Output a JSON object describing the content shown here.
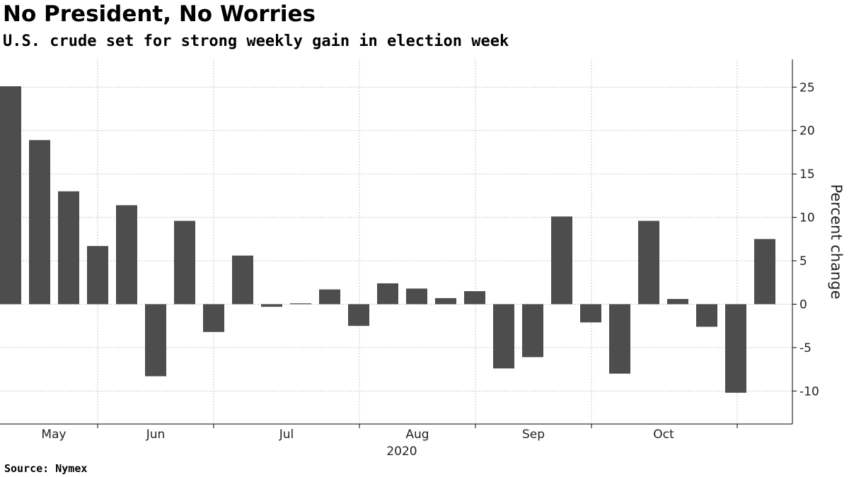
{
  "header": {
    "title": "No President, No Worries",
    "subtitle": "U.S. crude set for strong weekly gain in election week"
  },
  "footer": {
    "source": "Source: Nymex"
  },
  "colors": {
    "bar": "#4d4d4d",
    "grid": "#c8c8c8",
    "axis": "#000000"
  },
  "chart_data": {
    "type": "bar",
    "ylabel": "Percent change",
    "ylim": [
      -13.8,
      28.2
    ],
    "yticks": [
      -10,
      -5,
      0,
      5,
      10,
      15,
      20,
      25
    ],
    "xlabel": "2020",
    "x_month_labels": [
      "May",
      "Jun",
      "Jul",
      "Aug",
      "Sep",
      "Oct"
    ],
    "grid": true,
    "values": [
      25.1,
      18.9,
      13.0,
      6.7,
      11.4,
      -8.3,
      9.6,
      -3.2,
      5.6,
      -0.3,
      0.1,
      1.7,
      -2.5,
      2.4,
      1.8,
      0.7,
      1.5,
      -7.4,
      -6.1,
      10.1,
      -2.1,
      -8.0,
      9.6,
      0.6,
      -2.6,
      -10.2,
      7.5
    ]
  }
}
